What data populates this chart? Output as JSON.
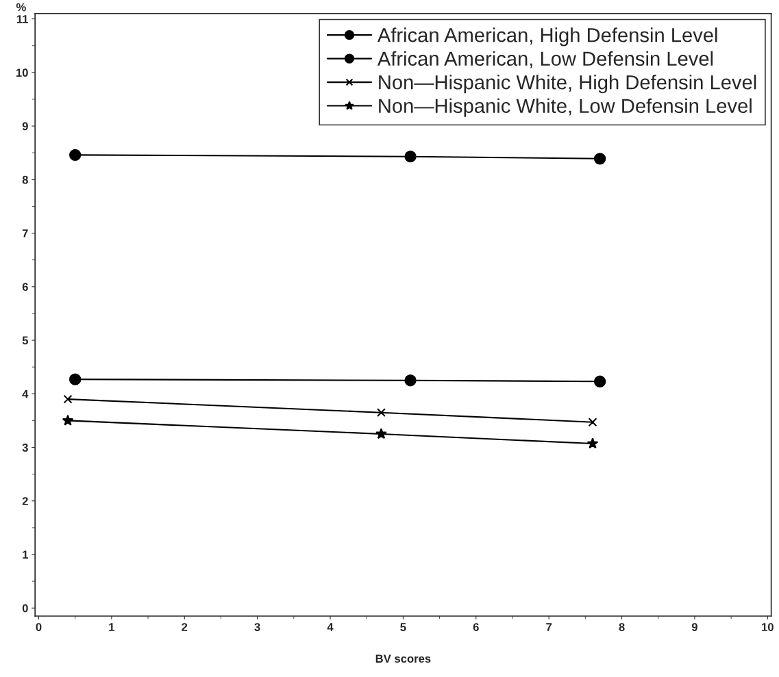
{
  "chart_data": {
    "type": "line",
    "xlabel": "BV scores",
    "ylabel": "%",
    "xlim": [
      -0.05,
      10.05
    ],
    "xticks": [
      0,
      1,
      2,
      3,
      4,
      5,
      6,
      7,
      8,
      9,
      10
    ],
    "ylim": [
      -0.15,
      11.1
    ],
    "yticks": [
      0,
      1,
      2,
      3,
      4,
      5,
      6,
      7,
      8,
      9,
      10,
      11
    ],
    "grid": false,
    "legend": "top right",
    "line_style": "solid",
    "series": [
      {
        "name": "African American, High Defensin Level",
        "color": "#000000",
        "marker": "circle",
        "x": [
          0.5,
          5.1,
          7.7
        ],
        "values": [
          8.46,
          8.43,
          8.39
        ]
      },
      {
        "name": "African American, Low Defensin Level",
        "color": "#000000",
        "marker": "circle",
        "x": [
          0.5,
          5.1,
          7.7
        ],
        "values": [
          4.27,
          4.25,
          4.23
        ]
      },
      {
        "name": "Non—Hispanic White, High Defensin Level",
        "color": "#000000",
        "marker": "cross",
        "x": [
          0.4,
          4.7,
          7.6
        ],
        "values": [
          3.9,
          3.65,
          3.47
        ]
      },
      {
        "name": "Non—Hispanic White, Low Defensin Level",
        "color": "#000000",
        "marker": "star",
        "x": [
          0.4,
          4.7,
          7.6
        ],
        "values": [
          3.5,
          3.25,
          3.07
        ]
      }
    ]
  }
}
